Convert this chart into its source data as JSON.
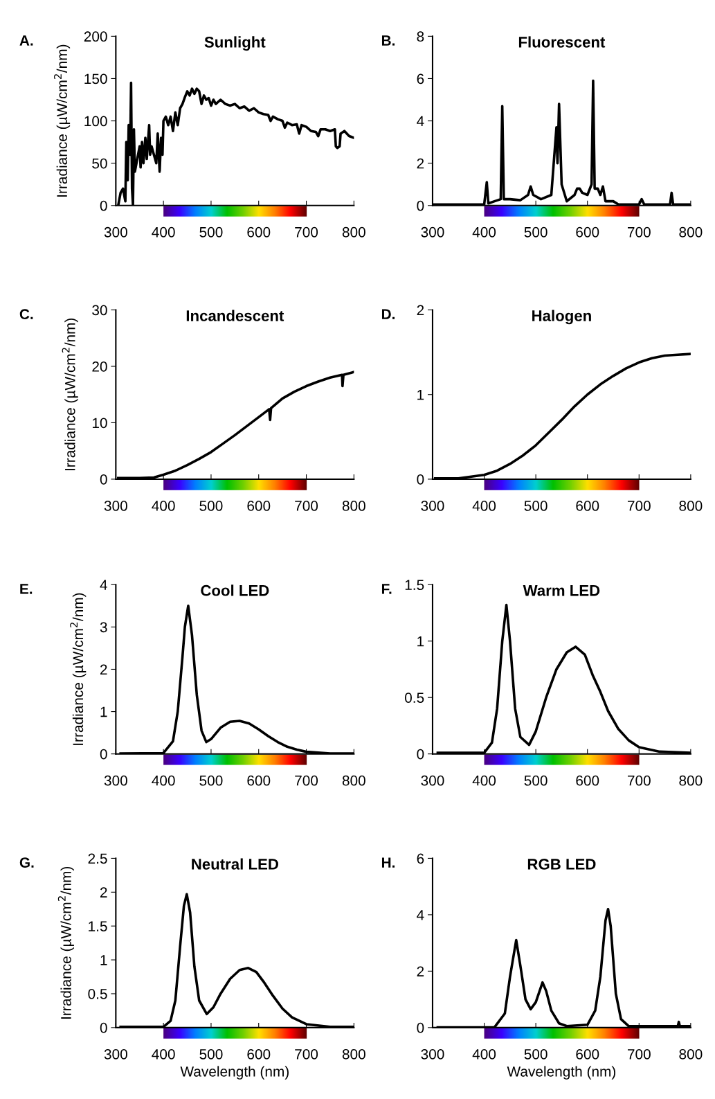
{
  "chart_data": [
    {
      "type": "line",
      "title": "Sunlight",
      "annotations": [
        "A."
      ],
      "ylabel": "Irradiance (µW/cm$^{2}$/nm)",
      "xlim": [
        300,
        800
      ],
      "xticks": [
        300,
        400,
        500,
        600,
        700,
        800
      ],
      "ylim": [
        0,
        200
      ],
      "yticks": [
        0,
        50,
        100,
        150,
        200
      ],
      "grid": false,
      "legend": false,
      "series": [
        {
          "color": "#000000",
          "x": [
            305,
            310,
            315,
            320,
            322,
            325,
            327,
            330,
            332,
            334,
            336,
            338,
            340,
            345,
            350,
            352,
            355,
            358,
            362,
            365,
            370,
            372,
            375,
            380,
            385,
            388,
            392,
            395,
            398,
            400,
            405,
            410,
            415,
            420,
            425,
            430,
            435,
            440,
            445,
            450,
            455,
            460,
            465,
            470,
            475,
            480,
            485,
            490,
            495,
            500,
            505,
            510,
            520,
            530,
            540,
            550,
            560,
            570,
            580,
            590,
            600,
            610,
            620,
            625,
            630,
            640,
            650,
            655,
            660,
            670,
            680,
            685,
            690,
            700,
            710,
            720,
            725,
            730,
            740,
            750,
            760,
            762,
            765,
            770,
            772,
            780,
            790,
            800
          ],
          "values": [
            0,
            15,
            20,
            5,
            75,
            30,
            95,
            60,
            145,
            20,
            0,
            90,
            40,
            55,
            70,
            45,
            75,
            50,
            80,
            55,
            95,
            60,
            70,
            60,
            50,
            85,
            40,
            80,
            60,
            100,
            105,
            95,
            105,
            88,
            110,
            95,
            115,
            120,
            128,
            135,
            130,
            138,
            132,
            138,
            135,
            120,
            130,
            125,
            127,
            118,
            125,
            120,
            125,
            120,
            118,
            120,
            115,
            117,
            112,
            115,
            110,
            108,
            107,
            100,
            105,
            102,
            100,
            92,
            98,
            95,
            96,
            85,
            95,
            93,
            88,
            87,
            82,
            90,
            90,
            88,
            90,
            70,
            68,
            70,
            85,
            88,
            82,
            80
          ]
        }
      ]
    },
    {
      "type": "line",
      "title": "Fluorescent",
      "annotations": [
        "B."
      ],
      "xlim": [
        300,
        800
      ],
      "xticks": [
        300,
        400,
        500,
        600,
        700,
        800
      ],
      "ylim": [
        0,
        8
      ],
      "yticks": [
        0,
        2,
        4,
        6,
        8
      ],
      "grid": false,
      "legend": false,
      "series": [
        {
          "color": "#000000",
          "x": [
            302,
            350,
            400,
            405,
            408,
            420,
            432,
            435,
            438,
            450,
            470,
            485,
            490,
            495,
            510,
            530,
            540,
            542,
            545,
            550,
            560,
            575,
            580,
            585,
            590,
            600,
            608,
            611,
            614,
            620,
            625,
            630,
            635,
            650,
            660,
            700,
            705,
            710,
            760,
            763,
            766,
            800
          ],
          "values": [
            0.05,
            0.05,
            0.05,
            1.1,
            0.1,
            0.2,
            0.3,
            4.7,
            0.3,
            0.3,
            0.25,
            0.5,
            0.9,
            0.5,
            0.3,
            0.5,
            3.7,
            2,
            4.8,
            1,
            0.2,
            0.5,
            0.8,
            0.8,
            0.6,
            0.5,
            1,
            5.9,
            0.8,
            0.8,
            0.5,
            0.9,
            0.2,
            0.2,
            0.05,
            0.05,
            0.3,
            0.05,
            0.05,
            0.6,
            0.05,
            0.05
          ]
        }
      ]
    },
    {
      "type": "line",
      "title": "Incandescent",
      "annotations": [
        "C."
      ],
      "ylabel": "Irradiance (µW/cm$^{2}$/nm)",
      "xlim": [
        300,
        800
      ],
      "xticks": [
        300,
        400,
        500,
        600,
        700,
        800
      ],
      "ylim": [
        0,
        30
      ],
      "yticks": [
        0,
        10,
        20,
        30
      ],
      "grid": false,
      "legend": false,
      "series": [
        {
          "color": "#000000",
          "x": [
            305,
            350,
            380,
            400,
            425,
            450,
            475,
            500,
            525,
            550,
            575,
            600,
            622,
            624,
            626,
            650,
            675,
            700,
            725,
            750,
            775,
            776,
            778,
            800
          ],
          "values": [
            0.2,
            0.2,
            0.3,
            0.8,
            1.5,
            2.5,
            3.6,
            4.8,
            6.3,
            7.8,
            9.4,
            11,
            12.4,
            10.5,
            12.6,
            14.3,
            15.5,
            16.5,
            17.3,
            18,
            18.5,
            16.5,
            18.5,
            19
          ]
        }
      ]
    },
    {
      "type": "line",
      "title": "Halogen",
      "annotations": [
        "D."
      ],
      "xlim": [
        300,
        800
      ],
      "xticks": [
        300,
        400,
        500,
        600,
        700,
        800
      ],
      "ylim": [
        0,
        2
      ],
      "yticks": [
        0,
        1,
        2
      ],
      "grid": false,
      "legend": false,
      "series": [
        {
          "color": "#000000",
          "x": [
            305,
            350,
            400,
            425,
            450,
            475,
            500,
            525,
            550,
            575,
            600,
            625,
            650,
            675,
            700,
            725,
            750,
            775,
            800
          ],
          "values": [
            0.01,
            0.01,
            0.05,
            0.1,
            0.18,
            0.28,
            0.4,
            0.55,
            0.7,
            0.86,
            1.0,
            1.12,
            1.22,
            1.31,
            1.38,
            1.43,
            1.46,
            1.47,
            1.48
          ]
        }
      ]
    },
    {
      "type": "line",
      "title": "Cool LED",
      "annotations": [
        "E."
      ],
      "ylabel": "Irradiance (µW/cm$^{2}$/nm)",
      "xlim": [
        300,
        800
      ],
      "xticks": [
        300,
        400,
        500,
        600,
        700,
        800
      ],
      "ylim": [
        0,
        4
      ],
      "yticks": [
        0,
        1,
        2,
        3,
        4
      ],
      "grid": false,
      "legend": false,
      "series": [
        {
          "color": "#000000",
          "x": [
            310,
            400,
            420,
            430,
            440,
            445,
            452,
            460,
            470,
            480,
            490,
            500,
            520,
            540,
            560,
            580,
            600,
            620,
            640,
            660,
            680,
            700,
            750,
            800
          ],
          "values": [
            0.01,
            0.02,
            0.3,
            1,
            2.3,
            3.0,
            3.5,
            2.8,
            1.4,
            0.55,
            0.28,
            0.35,
            0.62,
            0.76,
            0.78,
            0.72,
            0.58,
            0.42,
            0.28,
            0.17,
            0.1,
            0.05,
            0.01,
            0.01
          ]
        }
      ]
    },
    {
      "type": "line",
      "title": "Warm LED",
      "annotations": [
        "F."
      ],
      "xlim": [
        300,
        800
      ],
      "xticks": [
        300,
        400,
        500,
        600,
        700,
        800
      ],
      "ylim": [
        0,
        1.5
      ],
      "yticks": [
        0,
        0.5,
        1,
        1.5
      ],
      "grid": false,
      "legend": false,
      "series": [
        {
          "color": "#000000",
          "x": [
            310,
            400,
            415,
            425,
            435,
            443,
            450,
            460,
            470,
            487,
            500,
            520,
            540,
            560,
            577,
            595,
            610,
            625,
            640,
            660,
            680,
            700,
            740,
            800
          ],
          "values": [
            0.01,
            0.01,
            0.1,
            0.4,
            1.0,
            1.32,
            1.0,
            0.4,
            0.15,
            0.08,
            0.2,
            0.5,
            0.75,
            0.9,
            0.95,
            0.88,
            0.7,
            0.55,
            0.38,
            0.22,
            0.12,
            0.06,
            0.02,
            0.01
          ]
        }
      ]
    },
    {
      "type": "line",
      "title": "Neutral LED",
      "annotations": [
        "G."
      ],
      "ylabel": "Irradiance (µW/cm$^{2}$/nm)",
      "xlabel": "Wavelength (nm)",
      "xlim": [
        300,
        800
      ],
      "xticks": [
        300,
        400,
        500,
        600,
        700,
        800
      ],
      "ylim": [
        0,
        2.5
      ],
      "yticks": [
        0,
        0.5,
        1,
        1.5,
        2,
        2.5
      ],
      "grid": false,
      "legend": false,
      "series": [
        {
          "color": "#000000",
          "x": [
            310,
            400,
            415,
            425,
            435,
            443,
            449,
            456,
            465,
            475,
            491,
            505,
            520,
            540,
            560,
            578,
            595,
            610,
            630,
            650,
            670,
            700,
            750,
            800
          ],
          "values": [
            0.01,
            0.01,
            0.1,
            0.4,
            1.2,
            1.8,
            1.97,
            1.7,
            0.9,
            0.4,
            0.2,
            0.3,
            0.5,
            0.72,
            0.85,
            0.88,
            0.82,
            0.68,
            0.47,
            0.28,
            0.15,
            0.05,
            0.01,
            0.01
          ]
        }
      ]
    },
    {
      "type": "line",
      "title": "RGB LED",
      "annotations": [
        "H."
      ],
      "xlabel": "Wavelength (nm)",
      "xlim": [
        300,
        800
      ],
      "xticks": [
        300,
        400,
        500,
        600,
        700,
        800
      ],
      "ylim": [
        0,
        6
      ],
      "yticks": [
        0,
        2,
        4,
        6
      ],
      "grid": false,
      "legend": false,
      "series": [
        {
          "color": "#000000",
          "x": [
            310,
            420,
            440,
            450,
            462,
            470,
            480,
            490,
            500,
            513,
            520,
            530,
            545,
            560,
            600,
            615,
            625,
            635,
            640,
            645,
            655,
            665,
            680,
            775,
            777,
            779,
            800
          ],
          "values": [
            0.01,
            0.01,
            0.5,
            1.8,
            3.1,
            2.2,
            1.0,
            0.65,
            0.9,
            1.6,
            1.3,
            0.6,
            0.15,
            0.05,
            0.1,
            0.6,
            1.8,
            3.8,
            4.2,
            3.6,
            1.2,
            0.3,
            0.05,
            0.05,
            0.2,
            0.05,
            0.05
          ]
        }
      ]
    }
  ]
}
